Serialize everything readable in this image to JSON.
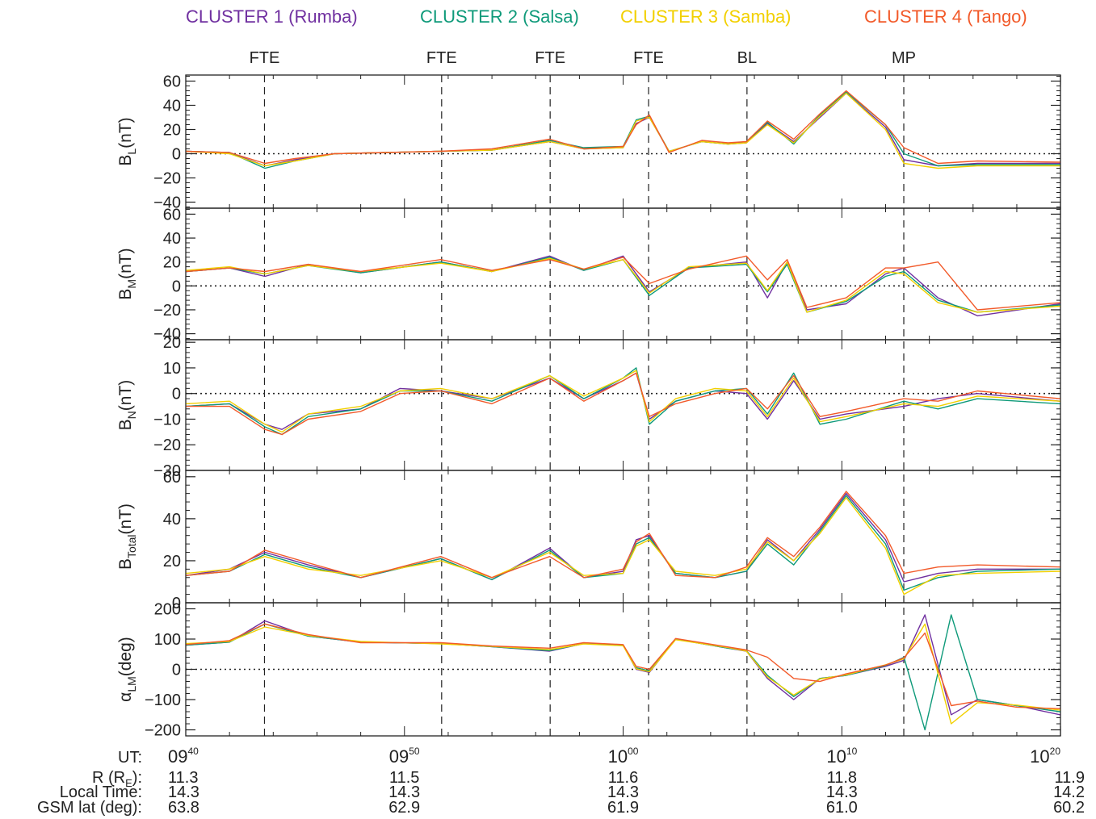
{
  "legend": [
    {
      "label": "CLUSTER 1 (Rumba)",
      "color": "#7030A0"
    },
    {
      "label": "CLUSTER 2 (Salsa)",
      "color": "#0F9A7A"
    },
    {
      "label": "CLUSTER 3 (Samba)",
      "color": "#F2D000"
    },
    {
      "label": "CLUSTER 4 (Tango)",
      "color": "#F25A2A"
    }
  ],
  "events": [
    {
      "label": "FTE",
      "time": 9.7267
    },
    {
      "label": "FTE",
      "time": 9.8617
    },
    {
      "label": "FTE",
      "time": 9.9444
    },
    {
      "label": "FTE",
      "time": 10.0194
    },
    {
      "label": "BL",
      "time": 10.0944
    },
    {
      "label": "MP",
      "time": 10.2139
    }
  ],
  "x_ticks": [
    {
      "hour": "09",
      "minute": "40",
      "time": 9.6667
    },
    {
      "hour": "09",
      "minute": "50",
      "time": 9.8333
    },
    {
      "hour": "10",
      "minute": "00",
      "time": 10.0
    },
    {
      "hour": "10",
      "minute": "10",
      "time": 10.1667
    },
    {
      "hour": "10",
      "minute": "20",
      "time": 10.3333
    }
  ],
  "ephemeris": {
    "labels": [
      "UT:",
      "R (R",
      "E",
      "):",
      "Local Time:",
      "GSM lat (deg):"
    ],
    "R": [
      "11.3",
      "11.5",
      "11.6",
      "11.8",
      "11.9"
    ],
    "local_time": [
      "14.3",
      "14.3",
      "14.3",
      "14.3",
      "14.2"
    ],
    "gsm_lat": [
      "63.8",
      "62.9",
      "61.9",
      "61.0",
      "60.2"
    ]
  },
  "chart_data": {
    "type": "line",
    "x_range_hours": [
      9.6667,
      10.3333
    ],
    "panels": [
      {
        "ylabel": "B",
        "ylabel_sub": "L",
        "ylabel_unit": "(nT)",
        "ylim": [
          -45,
          65
        ],
        "ticks": [
          60,
          40,
          20,
          0,
          -20,
          -40
        ],
        "zero_line": true,
        "x": [
          9.667,
          9.7,
          9.727,
          9.75,
          9.78,
          9.82,
          9.86,
          9.9,
          9.944,
          9.97,
          10.0,
          10.01,
          10.02,
          10.035,
          10.06,
          10.08,
          10.094,
          10.11,
          10.13,
          10.15,
          10.17,
          10.2,
          10.214,
          10.24,
          10.27,
          10.333
        ],
        "series": [
          {
            "name": "CLUSTER 1 (Rumba)",
            "values": [
              2,
              1,
              -10,
              -5,
              0,
              1,
              2,
              3,
              10,
              4,
              5,
              25,
              30,
              2,
              10,
              8,
              9,
              25,
              10,
              30,
              50,
              22,
              -5,
              -10,
              -8,
              -8
            ]
          },
          {
            "name": "CLUSTER 2 (Salsa)",
            "values": [
              2,
              1,
              -12,
              -6,
              0,
              1,
              2,
              3,
              11,
              5,
              6,
              28,
              31,
              2,
              10,
              8,
              10,
              26,
              8,
              32,
              51,
              24,
              0,
              -10,
              -9,
              -9
            ]
          },
          {
            "name": "CLUSTER 3 (Samba)",
            "values": [
              2,
              0,
              -10,
              -6,
              0,
              1,
              2,
              3,
              10,
              4,
              5,
              27,
              30,
              2,
              10,
              8,
              9,
              24,
              9,
              31,
              50,
              20,
              -8,
              -12,
              -10,
              -10
            ]
          },
          {
            "name": "CLUSTER 4 (Tango)",
            "values": [
              2,
              1,
              -8,
              -4,
              0,
              1,
              2,
              4,
              12,
              4,
              6,
              24,
              32,
              1,
              11,
              9,
              10,
              27,
              12,
              33,
              52,
              24,
              5,
              -8,
              -6,
              -7
            ]
          }
        ]
      },
      {
        "ylabel": "B",
        "ylabel_sub": "M",
        "ylabel_unit": "(nT)",
        "ylim": [
          -45,
          65
        ],
        "ticks": [
          60,
          40,
          20,
          0,
          -20,
          -40
        ],
        "zero_line": true,
        "x": [
          9.667,
          9.7,
          9.727,
          9.76,
          9.8,
          9.861,
          9.9,
          9.944,
          9.97,
          10.0,
          10.02,
          10.05,
          10.094,
          10.11,
          10.125,
          10.14,
          10.17,
          10.2,
          10.214,
          10.24,
          10.27,
          10.333
        ],
        "series": [
          {
            "name": "CLUSTER 1 (Rumba)",
            "values": [
              12,
              15,
              8,
              18,
              11,
              20,
              12,
              25,
              13,
              25,
              -5,
              15,
              20,
              -10,
              20,
              -20,
              -15,
              10,
              15,
              -10,
              -25,
              -15
            ]
          },
          {
            "name": "CLUSTER 2 (Salsa)",
            "values": [
              12,
              15,
              10,
              17,
              11,
              20,
              12,
              24,
              13,
              22,
              -8,
              15,
              18,
              -5,
              18,
              -22,
              -13,
              8,
              12,
              -12,
              -22,
              -16
            ]
          },
          {
            "name": "CLUSTER 3 (Samba)",
            "values": [
              13,
              16,
              10,
              17,
              12,
              19,
              12,
              23,
              14,
              22,
              -6,
              16,
              19,
              -4,
              20,
              -22,
              -12,
              12,
              10,
              -14,
              -22,
              -17
            ]
          },
          {
            "name": "CLUSTER 4 (Tango)",
            "values": [
              12,
              15,
              12,
              18,
              12,
              22,
              13,
              22,
              14,
              24,
              2,
              14,
              25,
              5,
              22,
              -18,
              -10,
              15,
              15,
              20,
              -20,
              -14
            ]
          }
        ]
      },
      {
        "ylabel": "B",
        "ylabel_sub": "N",
        "ylabel_unit": "(nT)",
        "ylim": [
          -30,
          21
        ],
        "ticks": [
          20,
          10,
          0,
          -10,
          -20,
          -30
        ],
        "zero_line": true,
        "x": [
          9.667,
          9.7,
          9.727,
          9.74,
          9.76,
          9.8,
          9.83,
          9.861,
          9.9,
          9.944,
          9.97,
          10.0,
          10.01,
          10.02,
          10.04,
          10.07,
          10.094,
          10.11,
          10.13,
          10.15,
          10.17,
          10.214,
          10.24,
          10.27,
          10.333
        ],
        "series": [
          {
            "name": "CLUSTER 1 (Rumba)",
            "values": [
              -5,
              -4,
              -12,
              -14,
              -8,
              -6,
              2,
              1,
              -2,
              6,
              -2,
              5,
              8,
              -10,
              -3,
              1,
              0,
              -10,
              5,
              -10,
              -8,
              -5,
              -2,
              0,
              -3
            ]
          },
          {
            "name": "CLUSTER 2 (Salsa)",
            "values": [
              -5,
              -4,
              -13,
              -16,
              -9,
              -6,
              1,
              1,
              -3,
              7,
              -2,
              6,
              10,
              -12,
              -3,
              1,
              2,
              -8,
              8,
              -12,
              -10,
              -3,
              -6,
              -2,
              -4
            ]
          },
          {
            "name": "CLUSTER 3 (Samba)",
            "values": [
              -4,
              -3,
              -12,
              -15,
              -8,
              -5,
              1,
              2,
              -2,
              7,
              -1,
              6,
              9,
              -11,
              -2,
              2,
              1,
              -9,
              6,
              -11,
              -9,
              -4,
              -5,
              -1,
              -3
            ]
          },
          {
            "name": "CLUSTER 4 (Tango)",
            "values": [
              -5,
              -5,
              -14,
              -16,
              -10,
              -7,
              0,
              1,
              -4,
              6,
              -3,
              5,
              8,
              -9,
              -4,
              0,
              2,
              -6,
              7,
              -9,
              -7,
              -2,
              -3,
              1,
              -2
            ]
          }
        ]
      },
      {
        "ylabel": "B",
        "ylabel_sub": "Total",
        "ylabel_unit": "(nT)",
        "ylim": [
          0,
          63
        ],
        "ticks": [
          60,
          40,
          20,
          0
        ],
        "zero_line": false,
        "x": [
          9.667,
          9.7,
          9.727,
          9.76,
          9.8,
          9.861,
          9.9,
          9.944,
          9.97,
          10.0,
          10.01,
          10.02,
          10.04,
          10.07,
          10.094,
          10.11,
          10.13,
          10.15,
          10.17,
          10.2,
          10.214,
          10.24,
          10.27,
          10.333
        ],
        "series": [
          {
            "name": "CLUSTER 1 (Rumba)",
            "values": [
              13,
              16,
              24,
              18,
              12,
              21,
              11,
              26,
              12,
              15,
              30,
              32,
              14,
              12,
              15,
              30,
              20,
              35,
              52,
              30,
              10,
              14,
              16,
              16
            ]
          },
          {
            "name": "CLUSTER 2 (Salsa)",
            "values": [
              13,
              15,
              23,
              17,
              12,
              21,
              11,
              25,
              12,
              14,
              28,
              31,
              14,
              12,
              15,
              28,
              18,
              34,
              51,
              28,
              6,
              12,
              15,
              16
            ]
          },
          {
            "name": "CLUSTER 3 (Samba)",
            "values": [
              14,
              16,
              22,
              16,
              13,
              20,
              12,
              24,
              13,
              14,
              27,
              30,
              15,
              13,
              16,
              29,
              20,
              33,
              50,
              26,
              4,
              13,
              14,
              15
            ]
          },
          {
            "name": "CLUSTER 4 (Tango)",
            "values": [
              13,
              15,
              25,
              19,
              12,
              22,
              12,
              22,
              12,
              16,
              29,
              33,
              13,
              12,
              17,
              31,
              22,
              36,
              53,
              32,
              14,
              17,
              18,
              17
            ]
          }
        ]
      },
      {
        "ylabel": "α",
        "ylabel_sub": "LM",
        "ylabel_unit": "(deg)",
        "ylim": [
          -220,
          220
        ],
        "ticks": [
          200,
          100,
          0,
          -100,
          -200
        ],
        "zero_line": true,
        "x": [
          9.667,
          9.7,
          9.727,
          9.76,
          9.8,
          9.861,
          9.9,
          9.944,
          9.97,
          10.0,
          10.01,
          10.02,
          10.04,
          10.08,
          10.094,
          10.11,
          10.13,
          10.15,
          10.17,
          10.2,
          10.214,
          10.23,
          10.25,
          10.27,
          10.3,
          10.333
        ],
        "series": [
          {
            "name": "CLUSTER 1 (Rumba)",
            "values": [
              80,
              90,
              160,
              110,
              90,
              85,
              75,
              60,
              85,
              80,
              0,
              -10,
              100,
              70,
              60,
              -30,
              -100,
              -30,
              -20,
              10,
              30,
              180,
              -150,
              -100,
              -120,
              -150
            ]
          },
          {
            "name": "CLUSTER 2 (Salsa)",
            "values": [
              80,
              90,
              150,
              110,
              90,
              85,
              75,
              62,
              85,
              80,
              5,
              -5,
              100,
              70,
              62,
              -20,
              -90,
              -30,
              -20,
              12,
              40,
              -200,
              180,
              -100,
              -120,
              -140
            ]
          },
          {
            "name": "CLUSTER 3 (Samba)",
            "values": [
              85,
              92,
              140,
              112,
              92,
              84,
              76,
              65,
              84,
              78,
              2,
              -8,
              98,
              72,
              60,
              -25,
              -85,
              -32,
              -18,
              15,
              35,
              150,
              -180,
              -110,
              -118,
              -135
            ]
          },
          {
            "name": "CLUSTER 4 (Tango)",
            "values": [
              82,
              95,
              150,
              115,
              88,
              88,
              77,
              70,
              88,
              82,
              10,
              0,
              102,
              74,
              64,
              40,
              -30,
              -40,
              -15,
              14,
              38,
              120,
              -120,
              -105,
              -125,
              -130
            ]
          }
        ]
      }
    ]
  }
}
